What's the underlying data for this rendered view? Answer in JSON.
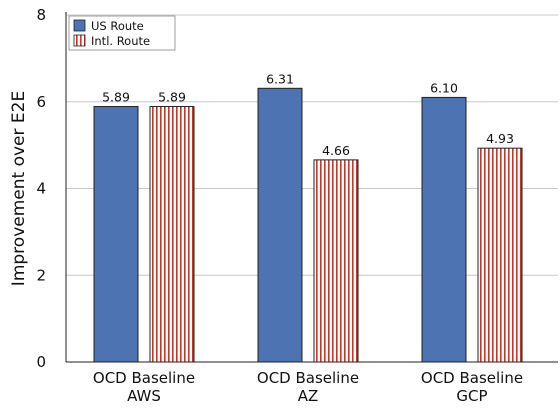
{
  "chart_data": {
    "type": "bar",
    "categories": [
      "OCD Baseline\nAWS",
      "OCD Baseline\nAZ",
      "OCD Baseline\nGCP"
    ],
    "series": [
      {
        "name": "US Route",
        "values": [
          5.89,
          6.31,
          6.1
        ],
        "color": "#4e73b3",
        "pattern": "solid"
      },
      {
        "name": "Intl. Route",
        "values": [
          5.89,
          4.66,
          4.93
        ],
        "color": "#c0392b",
        "pattern": "vertical-stripes"
      }
    ],
    "value_labels": [
      [
        "5.89",
        "6.31",
        "6.10"
      ],
      [
        "5.89",
        "4.66",
        "4.93"
      ]
    ],
    "xlabel": "",
    "ylabel": "Improvement over E2E",
    "ylim": [
      0,
      8
    ],
    "yticks": [
      0,
      2,
      4,
      6,
      8
    ],
    "grid": "horizontal",
    "legend_position": "top-left"
  }
}
